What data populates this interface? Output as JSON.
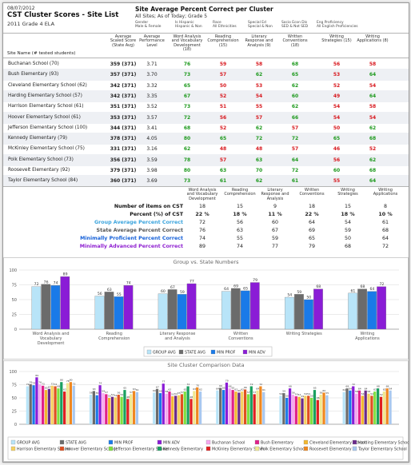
{
  "header": {
    "date": "08/07/2012",
    "title": "CST Cluster Scores - Site List",
    "subtitle": "2011 Grade 4 ELA",
    "right_title": "Site Average Percent Correct per Cluster",
    "right_subtitle": "All Sites; As of Today; Grade  5"
  },
  "filters": [
    {
      "label": "Gender",
      "value": "Male & Female"
    },
    {
      "label": "Is Hispanic",
      "value": "Hispanic & Non"
    },
    {
      "label": "Race",
      "value": "All Ethnicities"
    },
    {
      "label": "Special Ed",
      "value": "Special & Non"
    },
    {
      "label": "Socio Econ Dis",
      "value": "SED & Not SED"
    },
    {
      "label": "Eng Proficiency",
      "value": "All English Proficiencies"
    }
  ],
  "table": {
    "site_header": "Site Name (# tested students)",
    "columns": [
      {
        "line1": "Average",
        "line2": "Scaled Score",
        "line3": "(State Avg)",
        "line4": ""
      },
      {
        "line1": "Average",
        "line2": "Performance",
        "line3": "Level",
        "line4": ""
      },
      {
        "line1": "Word Analysis",
        "line2": "and Vocabulary",
        "line3": "Development",
        "line4": "(18)"
      },
      {
        "line1": "Reading",
        "line2": "Comprehension",
        "line3": "(15)",
        "line4": ""
      },
      {
        "line1": "Literary",
        "line2": "Response and",
        "line3": "Analysis (9)",
        "line4": ""
      },
      {
        "line1": "Written",
        "line2": "Conventions",
        "line3": "(18)",
        "line4": ""
      },
      {
        "line1": "Writing",
        "line2": "Strategies (15)",
        "line3": "",
        "line4": ""
      },
      {
        "line1": "Writing",
        "line2": "Applications (8)",
        "line3": "",
        "line4": ""
      }
    ],
    "rows": [
      {
        "name": "Buchanan School (70)",
        "score": "359 (371)",
        "perf": "3.71",
        "vals": [
          76,
          59,
          58,
          68,
          56,
          58
        ]
      },
      {
        "name": "Bush Elementary (93)",
        "score": "357 (371)",
        "perf": "3.70",
        "vals": [
          73,
          57,
          62,
          65,
          53,
          64
        ]
      },
      {
        "name": "Cleveland Elementary School (62)",
        "score": "342 (371)",
        "perf": "3.32",
        "vals": [
          65,
          50,
          53,
          62,
          52,
          54
        ]
      },
      {
        "name": "Harding Elementary School (57)",
        "score": "342 (371)",
        "perf": "3.35",
        "vals": [
          67,
          52,
          54,
          60,
          49,
          64
        ]
      },
      {
        "name": "Harrison Elementary School (61)",
        "score": "351 (371)",
        "perf": "3.52",
        "vals": [
          73,
          51,
          55,
          62,
          54,
          58
        ]
      },
      {
        "name": "Hoover Elementary School (61)",
        "score": "353 (371)",
        "perf": "3.57",
        "vals": [
          72,
          56,
          57,
          66,
          54,
          54
        ]
      },
      {
        "name": "Jefferson Elementary School (100)",
        "score": "344 (371)",
        "perf": "3.41",
        "vals": [
          68,
          52,
          62,
          57,
          50,
          62
        ]
      },
      {
        "name": "Kennedy Elementary (79)",
        "score": "378 (371)",
        "perf": "4.05",
        "vals": [
          80,
          65,
          72,
          72,
          65,
          68
        ]
      },
      {
        "name": "McKinley Elementary School (75)",
        "score": "331 (371)",
        "perf": "3.16",
        "vals": [
          62,
          48,
          48,
          57,
          46,
          52
        ]
      },
      {
        "name": "Polk Elementary School (73)",
        "score": "356 (371)",
        "perf": "3.59",
        "vals": [
          78,
          57,
          63,
          64,
          56,
          62
        ]
      },
      {
        "name": "Roosevelt Elementary (92)",
        "score": "379 (371)",
        "perf": "3.98",
        "vals": [
          80,
          63,
          70,
          72,
          60,
          68
        ]
      },
      {
        "name": "Taylor Elementary School (84)",
        "score": "360 (371)",
        "perf": "3.69",
        "vals": [
          73,
          61,
          62,
          61,
          55,
          64
        ]
      }
    ]
  },
  "summary": {
    "columns": [
      {
        "line1": "Word Analysis",
        "line2": "and Vocabulary",
        "line3": "Development"
      },
      {
        "line1": "Reading",
        "line2": "Comprehension",
        "line3": ""
      },
      {
        "line1": "Literary",
        "line2": "Response and",
        "line3": "Analysis"
      },
      {
        "line1": "Written",
        "line2": "Conventions",
        "line3": ""
      },
      {
        "line1": "Writing",
        "line2": "Strategies",
        "line3": ""
      },
      {
        "line1": "Writing",
        "line2": "Applications",
        "line3": ""
      }
    ],
    "rows": [
      {
        "label": "Number of items on CST",
        "color": "#111111",
        "vals": [
          "18",
          "15",
          "9",
          "18",
          "15",
          "8"
        ]
      },
      {
        "label": "Percent (%) of CST",
        "color": "#111111",
        "vals": [
          "22 %",
          "18 %",
          "11 %",
          "22 %",
          "18 %",
          "10 %"
        ]
      },
      {
        "label": "Group Average Percent Correct",
        "color": "#3ba4dd",
        "vals": [
          "72",
          "56",
          "60",
          "64",
          "54",
          "61"
        ]
      },
      {
        "label": "State Average Percent Correct",
        "color": "#555555",
        "vals": [
          "76",
          "63",
          "67",
          "69",
          "59",
          "68"
        ]
      },
      {
        "label": "Minimally Proficient Percent Correct",
        "color": "#1560d8",
        "vals": [
          "74",
          "55",
          "59",
          "65",
          "50",
          "64"
        ]
      },
      {
        "label": "Minimally Advanced Percent Correct",
        "color": "#8e1fd0",
        "vals": [
          "89",
          "74",
          "77",
          "79",
          "68",
          "72"
        ]
      }
    ]
  },
  "colors": {
    "high": "#1f9a1f",
    "low": "#d8181e",
    "group_avg": "#b8e4f8",
    "state_avg": "#6b6b6b",
    "min_prof": "#1a7ae8",
    "min_adv": "#8a1cd6"
  },
  "chart_data": [
    {
      "type": "bar",
      "title": "Group vs. State Numbers",
      "categories": [
        "Word Analysis and Vocabulary Development",
        "Reading Comprehension",
        "Literary Response and Analysis",
        "Written Conventions",
        "Writing Strategies",
        "Writing Applications"
      ],
      "series": [
        {
          "name": "GROUP AVG",
          "color": "#b8e4f8",
          "values": [
            72,
            56,
            60,
            64,
            54,
            61
          ]
        },
        {
          "name": "STATE AVG",
          "color": "#6b6b6b",
          "values": [
            76,
            63,
            67,
            69,
            59,
            68
          ]
        },
        {
          "name": "MIN PROF",
          "color": "#1a7ae8",
          "values": [
            74,
            55,
            59,
            65,
            50,
            64
          ]
        },
        {
          "name": "MIN ADV",
          "color": "#8a1cd6",
          "values": [
            89,
            74,
            77,
            79,
            68,
            72
          ]
        }
      ],
      "ylim": [
        0,
        100
      ],
      "yticks": [
        0,
        25,
        50,
        75,
        100
      ],
      "grid": true,
      "legend": "bottom"
    },
    {
      "type": "bar",
      "title": "Site Cluster Comparison Data",
      "categories": [
        "Word Analysis and Vocabulary Development",
        "Reading Comprehension",
        "Literary Response and Analysis",
        "Written Conventions",
        "Writing Strategies",
        "Writing Applications"
      ],
      "series": [
        {
          "name": "GROUP AVG",
          "color": "#b8e4f8",
          "values": [
            72,
            56,
            60,
            64,
            54,
            61
          ]
        },
        {
          "name": "STATE AVG",
          "color": "#6b6b6b",
          "values": [
            76,
            63,
            67,
            69,
            59,
            68
          ]
        },
        {
          "name": "MIN PROF",
          "color": "#1a7ae8",
          "values": [
            74,
            55,
            59,
            65,
            50,
            64
          ]
        },
        {
          "name": "MIN ADV",
          "color": "#8a1cd6",
          "values": [
            89,
            74,
            77,
            79,
            68,
            72
          ]
        },
        {
          "name": "Buchanan School",
          "color": "#f7a8f0",
          "values": [
            76,
            59,
            58,
            68,
            56,
            58
          ]
        },
        {
          "name": "Bush Elementary",
          "color": "#e0208a",
          "values": [
            73,
            57,
            62,
            65,
            53,
            64
          ]
        },
        {
          "name": "Cleveland Elementary School",
          "color": "#f2b830",
          "values": [
            65,
            50,
            53,
            62,
            52,
            54
          ]
        },
        {
          "name": "Harding Elementary School",
          "color": "#6a2a8a",
          "values": [
            67,
            52,
            54,
            60,
            49,
            64
          ]
        },
        {
          "name": "Harrison Elementary School",
          "color": "#f5d060",
          "values": [
            73,
            51,
            55,
            62,
            54,
            58
          ]
        },
        {
          "name": "Hoover Elementary School",
          "color": "#e05020",
          "values": [
            72,
            56,
            57,
            66,
            54,
            54
          ]
        },
        {
          "name": "Jefferson Elementary School",
          "color": "#7fe040",
          "values": [
            68,
            52,
            62,
            57,
            50,
            62
          ]
        },
        {
          "name": "Kennedy Elementary",
          "color": "#1aa060",
          "values": [
            80,
            65,
            72,
            72,
            65,
            68
          ]
        },
        {
          "name": "McKinley Elementary School",
          "color": "#e02020",
          "values": [
            62,
            48,
            48,
            57,
            46,
            52
          ]
        },
        {
          "name": "Polk Elementary School",
          "color": "#f0e890",
          "values": [
            78,
            57,
            63,
            64,
            56,
            62
          ]
        },
        {
          "name": "Roosevelt Elementary",
          "color": "#f08820",
          "values": [
            80,
            63,
            70,
            72,
            60,
            68
          ]
        },
        {
          "name": "Taylor Elementary School",
          "color": "#a8c8f0",
          "values": [
            73,
            61,
            62,
            61,
            55,
            64
          ]
        }
      ],
      "ylim": [
        0,
        100
      ],
      "yticks": [
        0,
        25,
        50,
        75,
        100
      ],
      "grid": true,
      "legend": "bottom"
    }
  ]
}
